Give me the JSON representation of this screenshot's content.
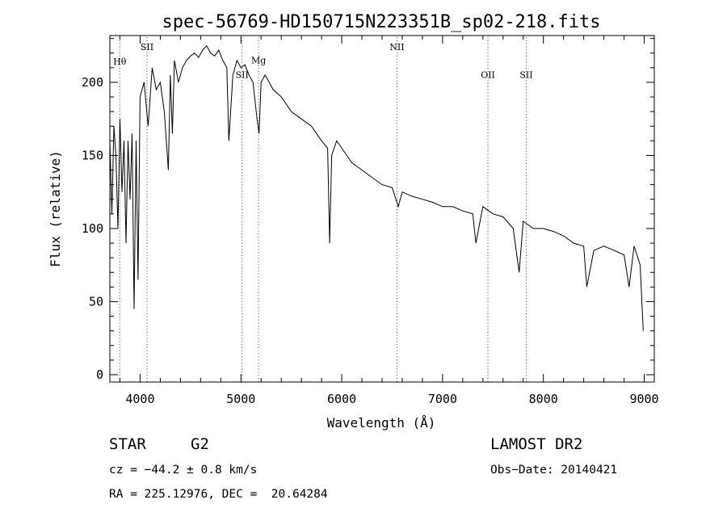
{
  "chart_data": {
    "type": "line",
    "title": "spec-56769-HD150715N223351B_sp02-218.fits",
    "xlabel": "Wavelength (Å)",
    "ylabel": "Flux (relative)",
    "xlim": [
      3700,
      9100
    ],
    "ylim": [
      -5,
      232
    ],
    "xticks": [
      4000,
      5000,
      6000,
      7000,
      8000,
      9000
    ],
    "yticks": [
      0,
      50,
      100,
      150,
      200
    ],
    "grid": false,
    "series": [
      {
        "x": [
          3700,
          3720,
          3740,
          3760,
          3780,
          3800,
          3820,
          3840,
          3860,
          3880,
          3900,
          3920,
          3940,
          3960,
          3980,
          4000,
          4040,
          4080,
          4120,
          4160,
          4200,
          4240,
          4280,
          4300,
          4320,
          4340,
          4380,
          4420,
          4460,
          4500,
          4540,
          4580,
          4620,
          4660,
          4700,
          4740,
          4780,
          4820,
          4860,
          4880,
          4920,
          4960,
          5000,
          5040,
          5080,
          5120,
          5160,
          5180,
          5200,
          5240,
          5280,
          5320,
          5400,
          5500,
          5600,
          5700,
          5800,
          5860,
          5880,
          5900,
          5950,
          6000,
          6100,
          6200,
          6300,
          6400,
          6500,
          6560,
          6600,
          6700,
          6800,
          6900,
          7000,
          7100,
          7200,
          7300,
          7330,
          7400,
          7500,
          7600,
          7700,
          7760,
          7800,
          7900,
          8000,
          8100,
          8200,
          8300,
          8400,
          8430,
          8500,
          8600,
          8700,
          8800,
          8850,
          8900,
          8960,
          8990
        ],
        "y": [
          160,
          110,
          170,
          150,
          100,
          175,
          125,
          160,
          90,
          160,
          120,
          165,
          45,
          160,
          65,
          190,
          200,
          170,
          210,
          195,
          200,
          180,
          140,
          205,
          165,
          215,
          200,
          210,
          215,
          218,
          220,
          217,
          222,
          225,
          220,
          218,
          222,
          215,
          210,
          160,
          205,
          215,
          210,
          212,
          205,
          200,
          175,
          165,
          200,
          205,
          200,
          195,
          190,
          180,
          175,
          170,
          160,
          155,
          90,
          150,
          160,
          155,
          145,
          140,
          135,
          130,
          128,
          115,
          125,
          122,
          120,
          118,
          115,
          115,
          112,
          110,
          90,
          115,
          110,
          108,
          100,
          70,
          105,
          100,
          100,
          98,
          95,
          90,
          88,
          60,
          85,
          88,
          85,
          82,
          60,
          88,
          75,
          30
        ]
      }
    ],
    "line_markers": [
      {
        "label": "Hθ",
        "wavelength": 3798,
        "label_y": 212
      },
      {
        "label": "SII",
        "wavelength": 4068,
        "label_y": 222
      },
      {
        "label": "SII",
        "wavelength": 5012,
        "label_y": 203
      },
      {
        "label": "Mg",
        "wavelength": 5175,
        "label_y": 213
      },
      {
        "label": "NII",
        "wavelength": 6548,
        "label_y": 222
      },
      {
        "label": "OII",
        "wavelength": 7450,
        "label_y": 203
      },
      {
        "label": "SII",
        "wavelength": 7830,
        "label_y": 203
      }
    ]
  },
  "footer": {
    "object_type": "STAR",
    "subclass": "G2",
    "redshift": "cz = −44.2 ± 0.8 km/s",
    "coords": "RA = 225.12976, DEC =  20.64284",
    "survey": "LAMOST DR2",
    "obs_date": "Obs−Date: 20140421"
  }
}
